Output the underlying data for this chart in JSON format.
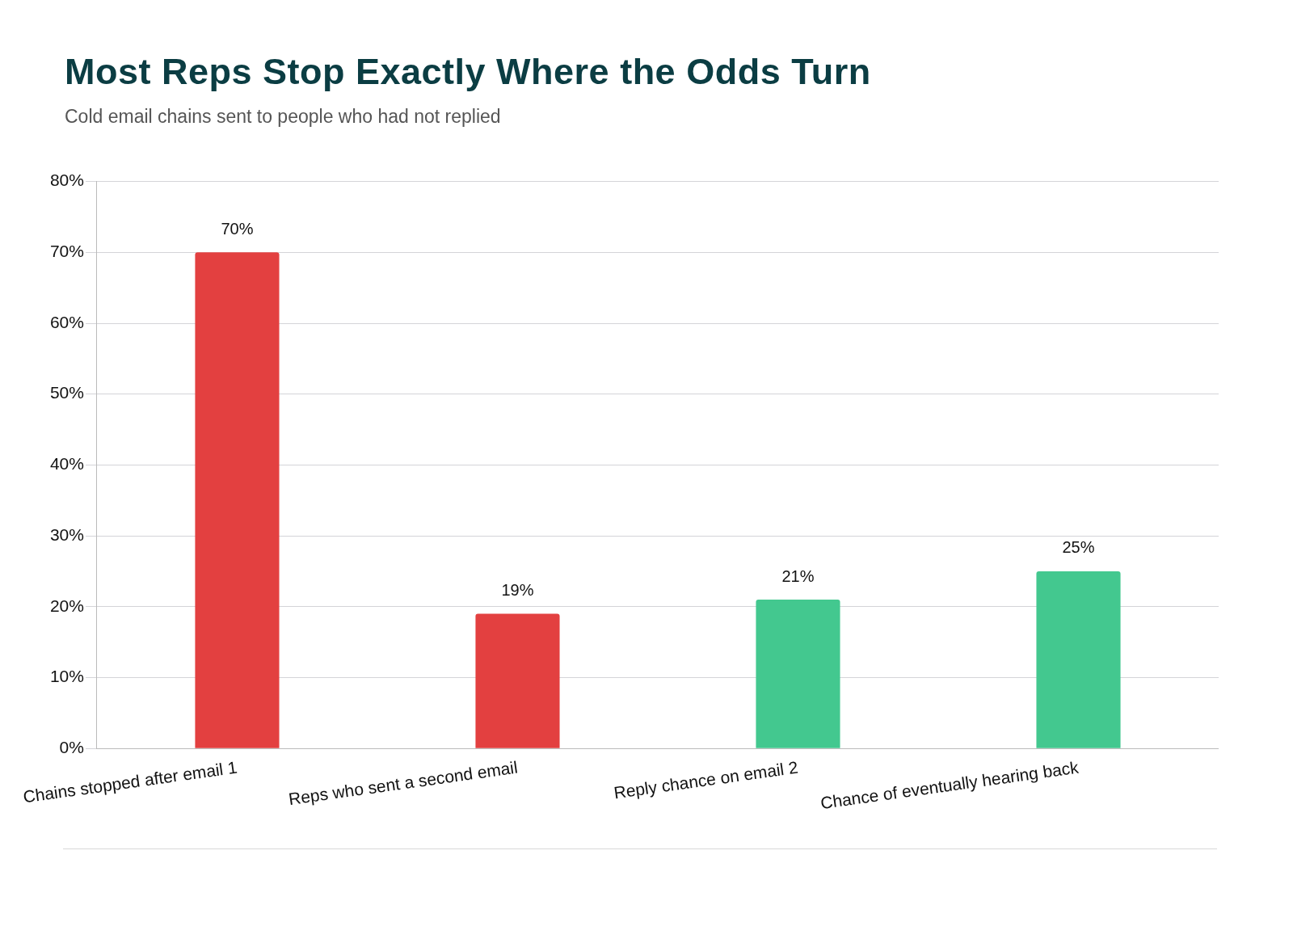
{
  "chart_data": {
    "type": "bar",
    "title": "Most Reps Stop Exactly Where the Odds Turn",
    "subtitle": "Cold email chains sent to people who had not replied",
    "categories": [
      "Chains stopped after email 1",
      "Reps who sent a second email",
      "Reply chance on email 2",
      "Chance of eventually hearing back"
    ],
    "values": [
      70,
      19,
      21,
      25
    ],
    "colors": [
      "#e34040",
      "#e34040",
      "#43c88f",
      "#43c88f"
    ],
    "ylim": [
      0,
      80
    ],
    "yticks": [
      {
        "value": 0,
        "label": "0%"
      },
      {
        "value": 10,
        "label": "10%"
      },
      {
        "value": 20,
        "label": "20%"
      },
      {
        "value": 30,
        "label": "30%"
      },
      {
        "value": 40,
        "label": "40%"
      },
      {
        "value": 50,
        "label": "50%"
      },
      {
        "value": 60,
        "label": "60%"
      },
      {
        "value": 70,
        "label": "70%"
      },
      {
        "value": 80,
        "label": "80%"
      }
    ],
    "value_labels": [
      "70%",
      "19%",
      "21%",
      "25%"
    ],
    "grid": "y",
    "legend": false
  }
}
